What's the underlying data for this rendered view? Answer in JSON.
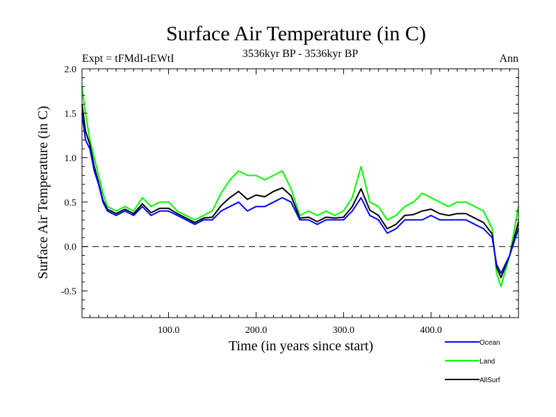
{
  "chart_data": {
    "type": "line",
    "title": "Surface Air Temperature (in C)",
    "experiment_label": "Expt = tFMdI-tEWtI",
    "period_label": "3536kyr BP - 3536kyr BP",
    "season_label": "Ann",
    "xlabel": "Time (in years since start)",
    "ylabel": "Surface Air Temperature (in C)",
    "xlim": [
      1,
      500
    ],
    "ylim": [
      -0.8,
      2.0
    ],
    "x_ticks": [
      100,
      200,
      300,
      400
    ],
    "x_tick_labels": [
      "100.0",
      "200.0",
      "300.0",
      "400.0"
    ],
    "y_ticks": [
      -0.5,
      0.0,
      0.5,
      1.0,
      1.5,
      2.0
    ],
    "y_tick_labels": [
      "-0.5",
      "0.0",
      "0.5",
      "1.0",
      "1.5",
      "2.0"
    ],
    "reference_line": 0.0,
    "grid": false,
    "legend_position": "bottom-right, outside plot",
    "series": [
      {
        "name": "Ocean",
        "color": "#0000ff",
        "x": [
          1,
          5,
          10,
          15,
          20,
          25,
          30,
          40,
          50,
          60,
          70,
          80,
          90,
          100,
          110,
          120,
          130,
          140,
          150,
          160,
          170,
          180,
          190,
          200,
          210,
          220,
          230,
          240,
          250,
          260,
          270,
          280,
          290,
          300,
          310,
          320,
          330,
          340,
          350,
          360,
          370,
          380,
          390,
          400,
          410,
          420,
          430,
          440,
          450,
          460,
          470,
          475,
          480,
          490,
          500
        ],
        "values": [
          1.5,
          1.2,
          1.1,
          0.85,
          0.7,
          0.5,
          0.4,
          0.35,
          0.4,
          0.35,
          0.45,
          0.35,
          0.4,
          0.4,
          0.35,
          0.3,
          0.25,
          0.3,
          0.3,
          0.4,
          0.45,
          0.5,
          0.4,
          0.45,
          0.45,
          0.5,
          0.55,
          0.5,
          0.3,
          0.3,
          0.25,
          0.3,
          0.3,
          0.3,
          0.4,
          0.55,
          0.35,
          0.3,
          0.15,
          0.2,
          0.3,
          0.3,
          0.3,
          0.35,
          0.3,
          0.3,
          0.3,
          0.3,
          0.25,
          0.2,
          0.1,
          -0.2,
          -0.3,
          -0.1,
          0.2
        ]
      },
      {
        "name": "Land",
        "color": "#00ff00",
        "x": [
          1,
          5,
          10,
          15,
          20,
          25,
          30,
          40,
          50,
          60,
          70,
          80,
          90,
          100,
          110,
          120,
          130,
          140,
          150,
          160,
          170,
          180,
          190,
          200,
          210,
          220,
          230,
          240,
          250,
          260,
          270,
          280,
          290,
          300,
          310,
          320,
          330,
          340,
          350,
          360,
          370,
          380,
          390,
          400,
          410,
          420,
          430,
          440,
          450,
          460,
          470,
          475,
          480,
          490,
          500
        ],
        "values": [
          1.8,
          1.5,
          1.2,
          1.0,
          0.8,
          0.6,
          0.45,
          0.4,
          0.45,
          0.4,
          0.55,
          0.45,
          0.5,
          0.5,
          0.4,
          0.35,
          0.3,
          0.35,
          0.4,
          0.6,
          0.75,
          0.85,
          0.8,
          0.8,
          0.75,
          0.8,
          0.85,
          0.65,
          0.35,
          0.4,
          0.35,
          0.4,
          0.35,
          0.4,
          0.55,
          0.9,
          0.5,
          0.45,
          0.3,
          0.35,
          0.45,
          0.5,
          0.6,
          0.55,
          0.5,
          0.45,
          0.5,
          0.5,
          0.45,
          0.4,
          0.2,
          -0.3,
          -0.45,
          -0.1,
          0.45
        ]
      },
      {
        "name": "AllSurf",
        "color": "#000000",
        "x": [
          1,
          5,
          10,
          15,
          20,
          25,
          30,
          40,
          50,
          60,
          70,
          80,
          90,
          100,
          110,
          120,
          130,
          140,
          150,
          160,
          170,
          180,
          190,
          200,
          210,
          220,
          230,
          240,
          250,
          260,
          270,
          280,
          290,
          300,
          310,
          320,
          330,
          340,
          350,
          360,
          370,
          380,
          390,
          400,
          410,
          420,
          430,
          440,
          450,
          460,
          470,
          475,
          480,
          490,
          500
        ],
        "values": [
          1.6,
          1.3,
          1.15,
          0.9,
          0.72,
          0.52,
          0.42,
          0.37,
          0.42,
          0.37,
          0.48,
          0.38,
          0.43,
          0.43,
          0.37,
          0.32,
          0.27,
          0.32,
          0.33,
          0.46,
          0.55,
          0.62,
          0.53,
          0.58,
          0.56,
          0.62,
          0.66,
          0.57,
          0.32,
          0.33,
          0.28,
          0.33,
          0.32,
          0.33,
          0.45,
          0.65,
          0.41,
          0.35,
          0.2,
          0.25,
          0.35,
          0.36,
          0.4,
          0.42,
          0.37,
          0.35,
          0.37,
          0.37,
          0.32,
          0.27,
          0.14,
          -0.23,
          -0.35,
          -0.1,
          0.28
        ]
      }
    ]
  }
}
